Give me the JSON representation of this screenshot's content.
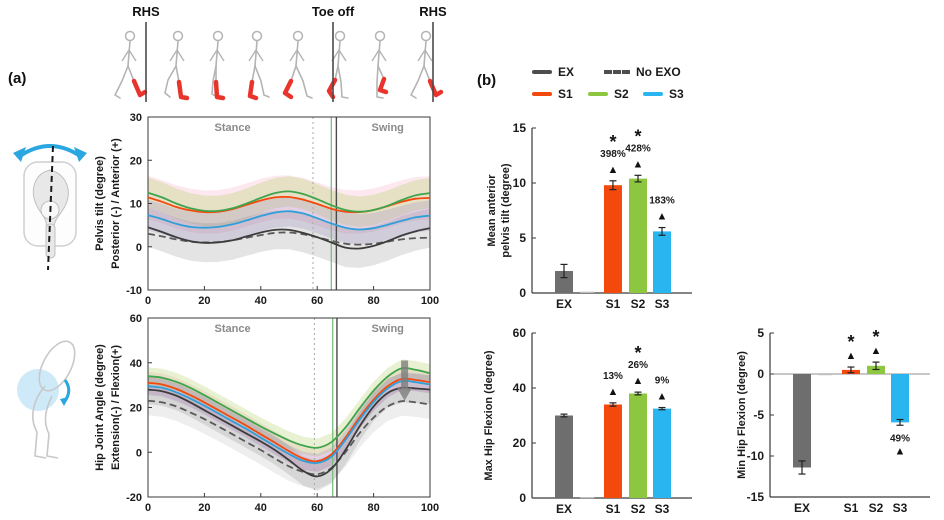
{
  "panel_a_label": "(a)",
  "panel_b_label": "(b)",
  "gait_strip": {
    "event_labels": [
      "RHS",
      "Toe off",
      "RHS"
    ]
  },
  "legend": {
    "rows": [
      [
        {
          "label": "EX",
          "color": "#4d4d4d",
          "dash": false
        },
        {
          "label": "No EXO",
          "color": "#4d4d4d",
          "dash": true
        }
      ],
      [
        {
          "label": "S1",
          "color": "#f4490d",
          "dash": false
        },
        {
          "label": "S2",
          "color": "#8dc63f",
          "dash": false
        },
        {
          "label": "S3",
          "color": "#29b6f0",
          "dash": false
        }
      ]
    ]
  },
  "chart_data": [
    {
      "type": "line",
      "title": "Pelvis tilt over gait cycle",
      "ylabel_lines": [
        "Pelvis tilt (degree)",
        "Posterior (-) / Anterior (+)"
      ],
      "xlabel": "",
      "xlim": [
        0,
        100
      ],
      "ylim": [
        -10,
        30
      ],
      "xticks": [
        0,
        20,
        40,
        60,
        80,
        100
      ],
      "yticks": [
        -10,
        0,
        10,
        20,
        30
      ],
      "region_labels": [
        {
          "text": "Stance",
          "x": 30
        },
        {
          "text": "Swing",
          "x": 85
        }
      ],
      "vlines": [
        {
          "x": 58.5,
          "dash": "2,3",
          "color": "#a8a8a8",
          "w": 1
        },
        {
          "x": 65,
          "dash": null,
          "color": "#7cbd81",
          "w": 1.3
        },
        {
          "x": 66.8,
          "dash": null,
          "color": "#4a4a4a",
          "w": 1.4
        }
      ],
      "x": [
        0,
        5,
        10,
        15,
        20,
        25,
        30,
        35,
        40,
        45,
        50,
        55,
        60,
        65,
        70,
        75,
        80,
        85,
        90,
        95,
        100
      ],
      "series": [
        {
          "name": "No EXO",
          "color": "#5a5a5a",
          "dash": true,
          "band": 0,
          "band_color": "none",
          "values": [
            3.0,
            2.4,
            1.7,
            1.2,
            1.0,
            1.1,
            1.5,
            2.1,
            2.7,
            3.2,
            3.3,
            2.9,
            2.2,
            1.4,
            0.7,
            0.5,
            0.7,
            1.2,
            1.7,
            2.0,
            2.1
          ]
        },
        {
          "name": "S1",
          "color": "#f4490d",
          "dash": false,
          "band": 5,
          "band_color": "rgba(240,130,160,0.18)",
          "values": [
            11.4,
            10.4,
            9.2,
            8.4,
            8.0,
            8.1,
            8.7,
            9.7,
            10.7,
            11.4,
            11.5,
            10.9,
            9.9,
            8.8,
            8.1,
            8.0,
            8.5,
            9.4,
            10.4,
            11.1,
            11.3
          ]
        },
        {
          "name": "S2",
          "color": "#3fa44d",
          "dash": false,
          "band": 3.5,
          "band_color": "rgba(172,205,95,0.28)",
          "values": [
            12.5,
            11.4,
            10.0,
            8.9,
            8.3,
            8.3,
            8.9,
            10.0,
            11.3,
            12.4,
            12.8,
            12.2,
            11.0,
            9.6,
            8.5,
            8.1,
            8.5,
            9.5,
            10.8,
            11.9,
            12.4
          ]
        },
        {
          "name": "S3",
          "color": "#2f9fd8",
          "dash": false,
          "band": 3.5,
          "band_color": "rgba(145,125,200,0.22)",
          "values": [
            7.3,
            6.4,
            5.3,
            4.6,
            4.4,
            4.6,
            5.2,
            6.1,
            7.1,
            7.9,
            8.2,
            7.7,
            6.6,
            5.4,
            4.4,
            4.0,
            4.3,
            5.1,
            6.0,
            6.8,
            7.2
          ]
        },
        {
          "name": "EX",
          "color": "#3c3c3c",
          "dash": false,
          "band": 4.5,
          "band_color": "rgba(120,120,120,0.20)",
          "values": [
            4.5,
            3.4,
            2.2,
            1.3,
            0.9,
            1.0,
            1.5,
            2.4,
            3.3,
            3.9,
            3.9,
            3.2,
            2.2,
            1.0,
            -0.2,
            -0.4,
            0.2,
            1.3,
            2.6,
            3.6,
            4.3
          ]
        }
      ]
    },
    {
      "type": "line",
      "title": "Hip joint angle over gait cycle",
      "ylabel_lines": [
        "Hip Joint Angle (degree)",
        "Extension(-) / Flexion(+)"
      ],
      "xlabel": "",
      "xlim": [
        0,
        100
      ],
      "ylim": [
        -20,
        60
      ],
      "xticks": [
        0,
        20,
        40,
        60,
        80,
        100
      ],
      "yticks": [
        -20,
        0,
        20,
        40,
        60
      ],
      "region_labels": [
        {
          "text": "Stance",
          "x": 30
        },
        {
          "text": "Swing",
          "x": 85
        }
      ],
      "vlines": [
        {
          "x": 59,
          "dash": "2,3",
          "color": "#a8a8a8",
          "w": 1
        },
        {
          "x": 65.5,
          "dash": null,
          "color": "#7cbd81",
          "w": 1.3
        },
        {
          "x": 67,
          "dash": null,
          "color": "#4a4a4a",
          "w": 1.4
        }
      ],
      "arrow": {
        "x": 91,
        "y_from": 41,
        "y_to": 23,
        "color": "rgba(125,125,125,0.8)"
      },
      "x": [
        0,
        5,
        10,
        15,
        20,
        25,
        30,
        35,
        40,
        45,
        50,
        55,
        60,
        65,
        70,
        75,
        80,
        85,
        90,
        95,
        100
      ],
      "series": [
        {
          "name": "No EXO",
          "color": "#5a5a5a",
          "dash": true,
          "band": 6.5,
          "band_color": "rgba(150,150,150,0.16)",
          "values": [
            23,
            22.3,
            20.5,
            17.8,
            14.8,
            11.5,
            8.0,
            4.5,
            1.0,
            -2.8,
            -6.3,
            -8.8,
            -9.8,
            -7.0,
            0.0,
            8.5,
            15.5,
            20.5,
            22.8,
            22.3,
            21.3
          ]
        },
        {
          "name": "S1",
          "color": "#f4490d",
          "dash": false,
          "band": 5,
          "band_color": "rgba(240,130,160,0.18)",
          "values": [
            31,
            30.3,
            28.3,
            25.5,
            22.3,
            18.8,
            15.3,
            11.8,
            8.0,
            4.3,
            0.5,
            -2.8,
            -4.0,
            -1.0,
            6.5,
            15.5,
            23.5,
            29.5,
            32.8,
            32.3,
            31.3
          ]
        },
        {
          "name": "S2",
          "color": "#3fa44d",
          "dash": false,
          "band": 4,
          "band_color": "rgba(172,205,95,0.28)",
          "values": [
            34,
            33.3,
            31.5,
            28.8,
            25.5,
            22.0,
            18.5,
            15.0,
            11.5,
            8.3,
            5.3,
            3.0,
            2.0,
            4.5,
            11.0,
            19.5,
            27.5,
            33.8,
            37.5,
            36.8,
            35.3
          ]
        },
        {
          "name": "S3",
          "color": "#2f9fd8",
          "dash": false,
          "band": 4,
          "band_color": "rgba(145,125,200,0.22)",
          "values": [
            29.5,
            28.8,
            26.8,
            24.0,
            20.8,
            17.3,
            13.8,
            10.3,
            6.5,
            2.8,
            -0.8,
            -3.8,
            -4.8,
            -2.0,
            5.5,
            14.5,
            22.5,
            28.5,
            31.8,
            31.3,
            30.3
          ]
        },
        {
          "name": "EX",
          "color": "#3c3c3c",
          "dash": false,
          "band": 6.5,
          "band_color": "rgba(120,120,120,0.20)",
          "values": [
            28,
            27.3,
            25.3,
            22.3,
            18.8,
            15.3,
            11.8,
            8.3,
            4.8,
            1.0,
            -3.5,
            -8.3,
            -10.8,
            -7.5,
            1.0,
            11.5,
            20.5,
            26.5,
            28.8,
            28.5,
            28.0
          ]
        }
      ]
    },
    {
      "type": "bar",
      "title": "Mean anterior pelvis tilt",
      "ylabel_lines": [
        "Mean anterior",
        "pelvis tilt (degree)"
      ],
      "ylim": [
        0,
        15
      ],
      "yticks": [
        0,
        5,
        10,
        15
      ],
      "categories": [
        "EX",
        "",
        "S1",
        "S2",
        "S3"
      ],
      "values": [
        2.0,
        0.12,
        9.8,
        10.4,
        5.6
      ],
      "errors": [
        0.6,
        0,
        0.4,
        0.3,
        0.35
      ],
      "colors": [
        "#6e6e6e",
        "#bdbdbd",
        "#f4490d",
        "#8dc63f",
        "#29b6f0"
      ],
      "sig_symbol": "*",
      "marker_symbol": "▲",
      "annotations": [
        null,
        null,
        {
          "pct": "398%",
          "star": true
        },
        {
          "pct": "428%",
          "star": true
        },
        {
          "pct": "183%",
          "star": false
        }
      ]
    },
    {
      "type": "bar",
      "title": "Max hip flexion",
      "ylabel_lines": [
        "Max Hip Flexion (degree)"
      ],
      "ylim": [
        0,
        60
      ],
      "yticks": [
        0,
        20,
        40,
        60
      ],
      "categories": [
        "EX",
        "",
        "S1",
        "S2",
        "S3"
      ],
      "values": [
        30,
        0.3,
        34,
        38,
        32.5
      ],
      "errors": [
        0.5,
        0,
        0.6,
        0.5,
        0.4
      ],
      "colors": [
        "#6e6e6e",
        "#bdbdbd",
        "#f4490d",
        "#8dc63f",
        "#29b6f0"
      ],
      "sig_symbol": "*",
      "marker_symbol": "▲",
      "annotations": [
        null,
        null,
        {
          "pct": "13%",
          "star": false
        },
        {
          "pct": "26%",
          "star": true
        },
        {
          "pct": "9%",
          "star": false
        }
      ]
    },
    {
      "type": "bar",
      "title": "Min hip flexion",
      "ylabel_lines": [
        "Min Hip Flexion (degree)"
      ],
      "ylim": [
        -15,
        5
      ],
      "yticks": [
        5,
        0,
        -5,
        -10,
        -15
      ],
      "categories": [
        "EX",
        "",
        "S1",
        "S2",
        "S3"
      ],
      "values": [
        -11.4,
        -0.15,
        0.5,
        1.0,
        -5.9
      ],
      "errors": [
        0.8,
        0,
        0.35,
        0.45,
        0.35
      ],
      "colors": [
        "#6e6e6e",
        "#bdbdbd",
        "#f4490d",
        "#8dc63f",
        "#29b6f0"
      ],
      "sig_symbol": "*",
      "marker_symbol": "▲",
      "annotations": [
        null,
        null,
        {
          "pct": null,
          "star": true
        },
        {
          "pct": null,
          "star": true
        },
        {
          "pct": "49%",
          "star": false
        }
      ]
    }
  ]
}
